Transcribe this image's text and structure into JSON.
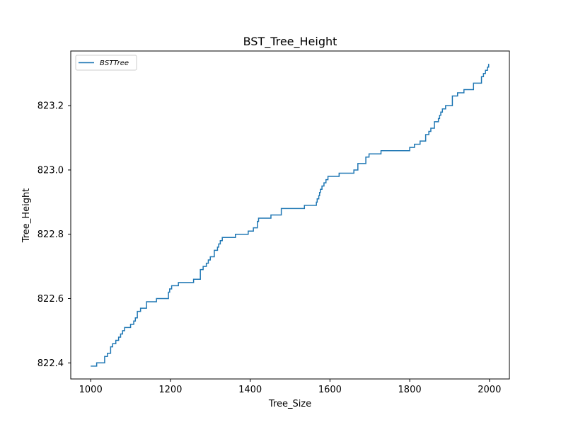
{
  "chart_data": {
    "type": "line",
    "title": "BST_Tree_Height",
    "xlabel": "Tree_Size",
    "ylabel": "Tree_Height",
    "xlim": [
      950,
      2050
    ],
    "ylim": [
      822.35,
      823.37
    ],
    "xticks": [
      1000,
      1200,
      1400,
      1600,
      1800,
      2000
    ],
    "xtick_labels": [
      "1000",
      "1200",
      "1400",
      "1600",
      "1800",
      "2000"
    ],
    "yticks": [
      822.4,
      822.6,
      822.8,
      823.0,
      823.2
    ],
    "ytick_labels": [
      "822.4",
      "822.6",
      "822.8",
      "823.0",
      "823.2"
    ],
    "grid": false,
    "legend_position": "top-left",
    "series": [
      {
        "name": "BSTTree",
        "color": "#1f77b4",
        "step": true,
        "x": [
          1000,
          1015,
          1035,
          1042,
          1050,
          1055,
          1063,
          1070,
          1075,
          1080,
          1085,
          1100,
          1108,
          1112,
          1117,
          1125,
          1140,
          1165,
          1195,
          1198,
          1203,
          1207,
          1220,
          1258,
          1275,
          1282,
          1290,
          1295,
          1300,
          1303,
          1310,
          1318,
          1321,
          1325,
          1330,
          1363,
          1368,
          1395,
          1400,
          1408,
          1418,
          1421,
          1426,
          1440,
          1452,
          1465,
          1478,
          1505,
          1536,
          1560,
          1566,
          1568,
          1570,
          1572,
          1574,
          1576,
          1580,
          1585,
          1590,
          1595,
          1600,
          1623,
          1645,
          1660,
          1670,
          1680,
          1690,
          1698,
          1728,
          1800,
          1812,
          1822,
          1826,
          1832,
          1840,
          1848,
          1853,
          1857,
          1862,
          1868,
          1872,
          1875,
          1878,
          1882,
          1890,
          1898,
          1907,
          1918,
          1920,
          1936,
          1945,
          1960,
          1970,
          1980,
          1985,
          1990,
          1995,
          1998
        ],
        "y": [
          822.39,
          822.4,
          822.42,
          822.43,
          822.45,
          822.46,
          822.47,
          822.48,
          822.49,
          822.5,
          822.51,
          822.52,
          822.53,
          822.54,
          822.56,
          822.57,
          822.59,
          822.6,
          822.62,
          822.63,
          822.64,
          822.64,
          822.65,
          822.66,
          822.69,
          822.7,
          822.71,
          822.72,
          822.73,
          822.73,
          822.75,
          822.76,
          822.77,
          822.78,
          822.79,
          822.8,
          822.8,
          822.81,
          822.81,
          822.82,
          822.84,
          822.85,
          822.85,
          822.85,
          822.86,
          822.86,
          822.88,
          822.88,
          822.89,
          822.89,
          822.9,
          822.91,
          822.91,
          822.92,
          822.93,
          822.94,
          822.95,
          822.96,
          822.97,
          822.98,
          822.98,
          822.99,
          822.99,
          823.0,
          823.02,
          823.02,
          823.04,
          823.05,
          823.06,
          823.07,
          823.08,
          823.08,
          823.09,
          823.09,
          823.11,
          823.12,
          823.13,
          823.13,
          823.15,
          823.15,
          823.16,
          823.17,
          823.18,
          823.19,
          823.2,
          823.2,
          823.23,
          823.23,
          823.24,
          823.25,
          823.25,
          823.27,
          823.27,
          823.29,
          823.3,
          823.31,
          823.32,
          823.33
        ]
      }
    ]
  }
}
